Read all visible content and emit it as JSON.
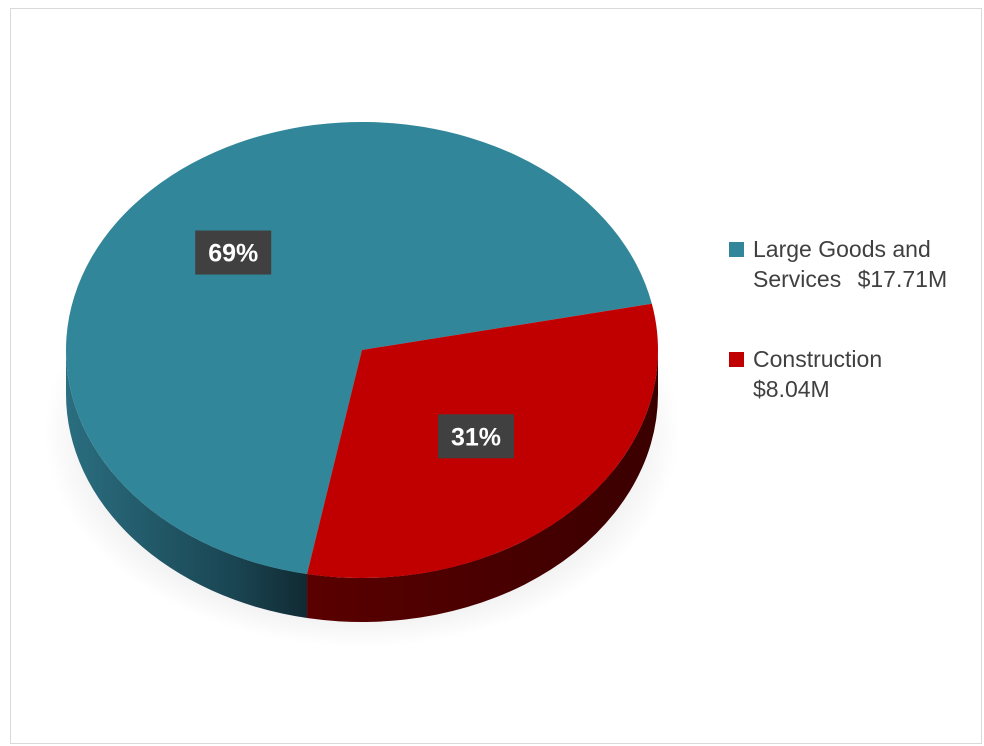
{
  "colors": {
    "large_goods": "#318799",
    "construction": "#c00000"
  },
  "chart_data": {
    "type": "pie",
    "title": "",
    "categories": [
      "Large Goods and Services",
      "Construction"
    ],
    "values": [
      17.71,
      8.04
    ],
    "value_labels": [
      "$17.71M",
      "$8.04M"
    ],
    "percent_labels": [
      "69%",
      "31%"
    ],
    "legend_position": "right",
    "style": "3d"
  }
}
